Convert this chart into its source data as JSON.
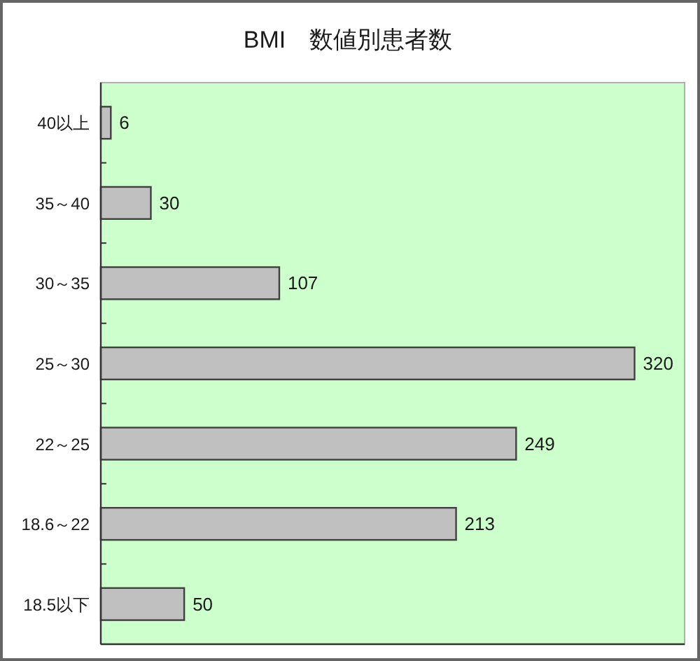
{
  "chart_data": {
    "type": "bar",
    "orientation": "horizontal",
    "title": "BMI　数値別患者数",
    "categories": [
      "40以上",
      "35～40",
      "30～35",
      "25～30",
      "22～25",
      "18.6～22",
      "18.5以下"
    ],
    "values": [
      6,
      30,
      107,
      320,
      249,
      213,
      50
    ],
    "color": "#c0c0c0",
    "xlim": [
      0,
      350
    ],
    "data_labels": true
  }
}
